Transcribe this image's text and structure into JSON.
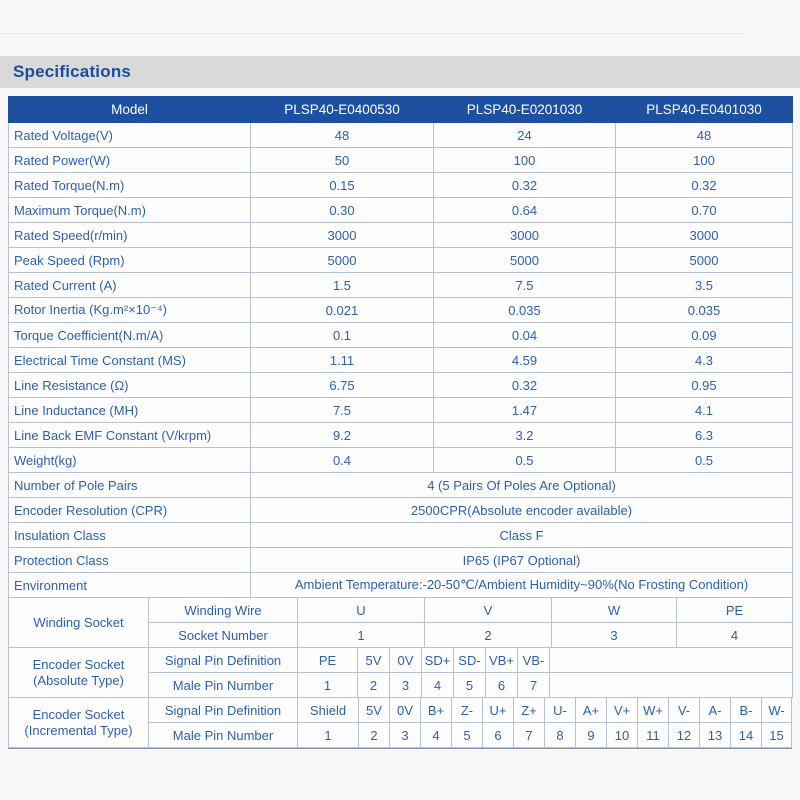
{
  "page": {
    "section_title": "Specifications"
  },
  "table": {
    "header": {
      "model_label": "Model",
      "models": [
        "PLSP40-E0400530",
        "PLSP40-E0201030",
        "PLSP40-E0401030"
      ]
    },
    "spec_rows": [
      {
        "label": "Rated Voltage(V)",
        "values": [
          "48",
          "24",
          "48"
        ]
      },
      {
        "label": "Rated Power(W)",
        "values": [
          "50",
          "100",
          "100"
        ]
      },
      {
        "label": "Rated Torque(N.m)",
        "values": [
          "0.15",
          "0.32",
          "0.32"
        ]
      },
      {
        "label": "Maximum Torque(N.m)",
        "values": [
          "0.30",
          "0.64",
          "0.70"
        ]
      },
      {
        "label": "Rated Speed(r/min)",
        "values": [
          "3000",
          "3000",
          "3000"
        ]
      },
      {
        "label": "Peak Speed (Rpm)",
        "values": [
          "5000",
          "5000",
          "5000"
        ]
      },
      {
        "label": "Rated Current (A)",
        "values": [
          "1.5",
          "7.5",
          "3.5"
        ]
      },
      {
        "label": "Rotor Inertia (Kg.m²×10⁻⁴)",
        "values": [
          "0.021",
          "0.035",
          "0.035"
        ]
      },
      {
        "label": "Torque Coefficient(N.m/A)",
        "values": [
          "0.1",
          "0.04",
          "0.09"
        ]
      },
      {
        "label": "Electrical Time Constant (MS)",
        "values": [
          "1.11",
          "4.59",
          "4.3"
        ]
      },
      {
        "label": "Line Resistance (Ω)",
        "values": [
          "6.75",
          "0.32",
          "0.95"
        ]
      },
      {
        "label": "Line Inductance (MH)",
        "values": [
          "7.5",
          "1.47",
          "4.1"
        ]
      },
      {
        "label": "Line Back EMF Constant (V/krpm)",
        "values": [
          "9.2",
          "3.2",
          "6.3"
        ]
      },
      {
        "label": "Weight(kg)",
        "values": [
          "0.4",
          "0.5",
          "0.5"
        ]
      }
    ],
    "merged_rows": [
      {
        "label": "Number of Pole Pairs",
        "value": "4 (5 Pairs Of Poles Are Optional)"
      },
      {
        "label": "Encoder Resolution (CPR)",
        "value": "2500CPR(Absolute encoder available)"
      },
      {
        "label": "Insulation Class",
        "value": "Class F"
      },
      {
        "label": "Protection Class",
        "value": "IP65 (IP67 Optional)"
      },
      {
        "label": "Environment",
        "value": "Ambient Temperature:-20-50℃/Ambient Humidity~90%(No Frosting Condition)"
      }
    ],
    "winding_socket": {
      "label": "Winding Socket",
      "rows": [
        {
          "label": "Winding Wire",
          "cells": [
            "U",
            "V",
            "W",
            "PE"
          ]
        },
        {
          "label": "Socket Number",
          "cells": [
            "1",
            "2",
            "3",
            "4"
          ]
        }
      ]
    },
    "encoder_absolute": {
      "label": "Encoder Socket\n(Absolute Type)",
      "rows": [
        {
          "label": "Signal Pin Definition",
          "cells": [
            "PE",
            "5V",
            "0V",
            "SD+",
            "SD-",
            "VB+",
            "VB-"
          ]
        },
        {
          "label": "Male Pin Number",
          "cells": [
            "1",
            "2",
            "3",
            "4",
            "5",
            "6",
            "7"
          ]
        }
      ]
    },
    "encoder_incremental": {
      "label": "Encoder Socket\n(Incremental Type)",
      "rows": [
        {
          "label": "Signal Pin Definition",
          "cells": [
            "Shield",
            "5V",
            "0V",
            "B+",
            "Z-",
            "U+",
            "Z+",
            "U-",
            "A+",
            "V+",
            "W+",
            "V-",
            "A-",
            "B-",
            "W-"
          ]
        },
        {
          "label": "Male Pin Number",
          "cells": [
            "1",
            "2",
            "3",
            "4",
            "5",
            "6",
            "7",
            "8",
            "9",
            "10",
            "11",
            "12",
            "13",
            "14",
            "15"
          ]
        }
      ]
    }
  }
}
